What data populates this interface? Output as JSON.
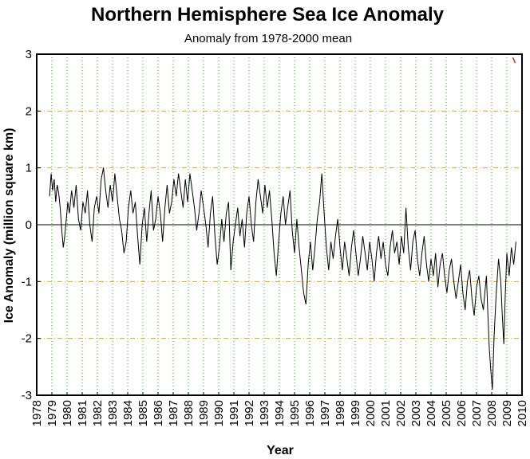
{
  "chart_data": {
    "type": "line",
    "title": "Northern Hemisphere Sea Ice Anomaly",
    "subtitle": "Anomaly from 1978-2000 mean",
    "xlabel": "Year",
    "ylabel": "Ice Anomaly (million square km)",
    "xlim": [
      1978,
      2010
    ],
    "ylim": [
      -3,
      3
    ],
    "x_ticks": [
      "1978",
      "1979",
      "1980",
      "1981",
      "1982",
      "1983",
      "1984",
      "1985",
      "1986",
      "1987",
      "1988",
      "1989",
      "1990",
      "1991",
      "1992",
      "1993",
      "1994",
      "1995",
      "1996",
      "1997",
      "1998",
      "1999",
      "2000",
      "2001",
      "2002",
      "2003",
      "2004",
      "2005",
      "2006",
      "2007",
      "2008",
      "2009",
      "2010"
    ],
    "y_ticks": [
      "3",
      "2",
      "1",
      "0",
      "-1",
      "-2",
      "-3"
    ],
    "grid": {
      "vertical": "dotted",
      "horizontal": "dash-dot",
      "vertical_color": "#22aa22",
      "horizontal_color": "#e8a020"
    },
    "zero_line": true,
    "line_color": "#000000",
    "marker": {
      "x": 2009.5,
      "y": 2.9,
      "color": "#bb3322"
    },
    "series": [
      {
        "values_x": [
          1978.85,
          1978.95,
          1979.05,
          1979.15,
          1979.25,
          1979.35,
          1979.45,
          1979.55,
          1979.65,
          1979.75,
          1979.85,
          1979.95,
          1980.05,
          1980.15,
          1980.3,
          1980.45,
          1980.6,
          1980.75,
          1980.9,
          1981.05,
          1981.2,
          1981.35,
          1981.5,
          1981.65,
          1981.8,
          1981.95,
          1982.1,
          1982.25,
          1982.4,
          1982.55,
          1982.7,
          1982.85,
          1983.0,
          1983.15,
          1983.3,
          1983.45,
          1983.6,
          1983.75,
          1983.9,
          1984.05,
          1984.2,
          1984.35,
          1984.5,
          1984.65,
          1984.8,
          1984.95,
          1985.1,
          1985.25,
          1985.4,
          1985.55,
          1985.7,
          1985.85,
          1986.0,
          1986.15,
          1986.3,
          1986.45,
          1986.6,
          1986.75,
          1986.9,
          1987.05,
          1987.2,
          1987.35,
          1987.5,
          1987.65,
          1987.8,
          1987.95,
          1988.1,
          1988.25,
          1988.4,
          1988.55,
          1988.7,
          1988.85,
          1989.0,
          1989.15,
          1989.3,
          1989.45,
          1989.6,
          1989.75,
          1989.9,
          1990.05,
          1990.2,
          1990.35,
          1990.5,
          1990.65,
          1990.8,
          1990.95,
          1991.1,
          1991.25,
          1991.4,
          1991.55,
          1991.7,
          1991.85,
          1992.0,
          1992.15,
          1992.3,
          1992.45,
          1992.6,
          1992.75,
          1992.9,
          1993.05,
          1993.2,
          1993.35,
          1993.5,
          1993.65,
          1993.8,
          1993.95,
          1994.1,
          1994.25,
          1994.4,
          1994.55,
          1994.7,
          1994.85,
          1995.0,
          1995.15,
          1995.3,
          1995.45,
          1995.6,
          1995.75,
          1995.9,
          1996.05,
          1996.2,
          1996.35,
          1996.5,
          1996.65,
          1996.8,
          1996.95,
          1997.1,
          1997.25,
          1997.4,
          1997.55,
          1997.7,
          1997.85,
          1998.0,
          1998.15,
          1998.3,
          1998.45,
          1998.6,
          1998.75,
          1998.9,
          1999.05,
          1999.2,
          1999.35,
          1999.5,
          1999.65,
          1999.8,
          1999.95,
          2000.1,
          2000.25,
          2000.4,
          2000.55,
          2000.7,
          2000.85,
          2001.0,
          2001.15,
          2001.3,
          2001.45,
          2001.6,
          2001.75,
          2001.9,
          2002.05,
          2002.2,
          2002.35,
          2002.5,
          2002.65,
          2002.8,
          2002.95,
          2003.1,
          2003.25,
          2003.4,
          2003.55,
          2003.7,
          2003.85,
          2004.0,
          2004.15,
          2004.3,
          2004.45,
          2004.6,
          2004.75,
          2004.9,
          2005.05,
          2005.2,
          2005.35,
          2005.5,
          2005.65,
          2005.8,
          2005.95,
          2006.1,
          2006.25,
          2006.4,
          2006.55,
          2006.7,
          2006.85,
          2007.0,
          2007.15,
          2007.3,
          2007.45,
          2007.55,
          2007.65,
          2007.75,
          2007.85,
          2007.95,
          2008.05,
          2008.15,
          2008.3,
          2008.45,
          2008.6,
          2008.7,
          2008.8,
          2008.9,
          2009.0,
          2009.15,
          2009.3,
          2009.45,
          2009.6
        ],
        "values_y": [
          0.5,
          0.9,
          0.6,
          0.8,
          0.4,
          0.7,
          0.55,
          0.3,
          -0.1,
          -0.4,
          -0.2,
          0.1,
          0.4,
          0.2,
          0.6,
          0.3,
          0.7,
          0.1,
          -0.1,
          0.4,
          0.2,
          0.6,
          0.0,
          -0.3,
          0.3,
          0.5,
          0.2,
          0.8,
          1.0,
          0.6,
          0.3,
          0.7,
          0.4,
          0.9,
          0.5,
          0.1,
          -0.1,
          -0.5,
          -0.3,
          0.3,
          0.6,
          0.2,
          0.4,
          -0.2,
          -0.7,
          0.0,
          0.3,
          -0.3,
          0.2,
          0.6,
          -0.1,
          0.1,
          0.5,
          0.2,
          -0.3,
          0.3,
          0.7,
          0.2,
          0.4,
          0.8,
          0.5,
          0.9,
          0.6,
          0.3,
          0.8,
          0.4,
          0.9,
          0.6,
          0.3,
          -0.1,
          0.2,
          0.6,
          0.3,
          0.0,
          -0.4,
          0.2,
          0.5,
          -0.2,
          -0.7,
          -0.4,
          0.1,
          -0.3,
          0.2,
          0.4,
          -0.8,
          -0.3,
          0.0,
          0.3,
          -0.2,
          0.1,
          -0.4,
          0.2,
          0.5,
          0.0,
          -0.3,
          0.4,
          0.8,
          0.5,
          0.2,
          0.7,
          0.3,
          0.6,
          0.1,
          -0.5,
          -0.9,
          -0.3,
          0.2,
          0.5,
          0.0,
          0.3,
          0.6,
          -0.1,
          -0.5,
          0.1,
          -0.4,
          -0.8,
          -1.2,
          -1.4,
          -0.7,
          -0.3,
          -0.8,
          -0.4,
          0.1,
          0.4,
          0.9,
          0.2,
          -0.4,
          -0.8,
          -0.3,
          -0.6,
          -0.2,
          0.1,
          -0.4,
          -0.8,
          -0.3,
          -0.6,
          -0.9,
          -0.4,
          -0.1,
          -0.5,
          -0.9,
          -0.6,
          -0.2,
          -0.5,
          -0.8,
          -0.3,
          -0.6,
          -1.0,
          -0.5,
          -0.2,
          -0.6,
          -0.3,
          -0.7,
          -0.9,
          -0.4,
          -0.1,
          -0.5,
          -0.3,
          -0.7,
          -0.2,
          -0.5,
          0.3,
          -0.4,
          -0.8,
          -0.3,
          -0.1,
          -0.6,
          -0.9,
          -0.5,
          -0.2,
          -0.7,
          -1.0,
          -0.6,
          -0.9,
          -0.5,
          -1.1,
          -0.7,
          -0.5,
          -0.9,
          -1.2,
          -0.8,
          -0.6,
          -1.0,
          -1.3,
          -1.0,
          -0.7,
          -1.2,
          -1.5,
          -1.0,
          -0.8,
          -1.3,
          -1.6,
          -1.1,
          -0.9,
          -1.3,
          -1.5,
          -1.2,
          -0.9,
          -1.6,
          -2.2,
          -2.6,
          -2.9,
          -2.0,
          -1.2,
          -0.6,
          -1.0,
          -1.6,
          -2.1,
          -1.2,
          -0.5,
          -0.9,
          -0.4,
          -0.7,
          -0.3
        ]
      }
    ]
  }
}
